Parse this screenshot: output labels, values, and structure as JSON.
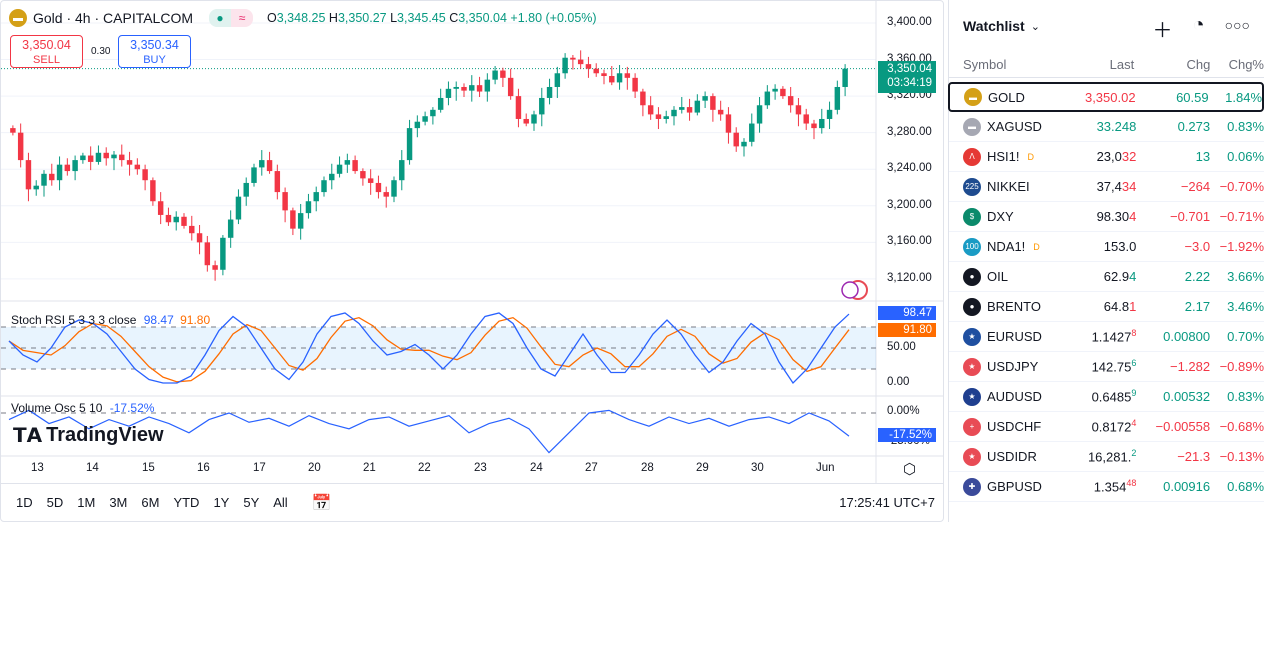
{
  "header": {
    "symbol": "Gold · 4h · CAPITALCOM",
    "open_label": "O",
    "open": "3,348.25",
    "high_label": "H",
    "high": "3,350.27",
    "low_label": "L",
    "low": "3,345.45",
    "close_label": "C",
    "close": "3,350.04",
    "change": "+1.80 (+0.05%)"
  },
  "trade": {
    "sell_price": "3,350.04",
    "sell_label": "SELL",
    "spread": "0.30",
    "buy_price": "3,350.34",
    "buy_label": "BUY"
  },
  "price_axis": {
    "labels": [
      "3,400.00",
      "3,360.00",
      "3,320.00",
      "3,280.00",
      "3,240.00",
      "3,200.00",
      "3,160.00",
      "3,120.00"
    ],
    "values": [
      3400,
      3360,
      3320,
      3280,
      3240,
      3200,
      3160,
      3120
    ],
    "current_price": "3,350.04",
    "countdown": "03:34:19"
  },
  "stoch": {
    "label": "Stoch RSI 5 3 3 3 close",
    "k_value": "98.47",
    "d_value": "91.80",
    "axis": [
      "50.00",
      "0.00"
    ],
    "k": [
      60,
      40,
      30,
      50,
      80,
      90,
      85,
      70,
      45,
      20,
      5,
      0,
      0,
      10,
      40,
      75,
      95,
      80,
      50,
      20,
      5,
      30,
      70,
      95,
      100,
      85,
      60,
      40,
      45,
      55,
      40,
      20,
      40,
      70,
      95,
      100,
      85,
      50,
      20,
      10,
      40,
      70,
      40,
      15,
      15,
      40,
      70,
      90,
      70,
      40,
      15,
      30,
      60,
      85,
      70,
      30,
      0,
      20,
      50,
      80,
      98.47
    ]
  },
  "volume_osc": {
    "label": "Volume Osc 5 10",
    "value": "-17.52%",
    "axis": [
      "0.00%",
      "-25.00%"
    ],
    "values": [
      -5,
      2,
      -8,
      -3,
      -12,
      -5,
      -10,
      -3,
      -8,
      -15,
      -5,
      0,
      -7,
      -4,
      -10,
      -2,
      -8,
      -12,
      -5,
      -3,
      -10,
      -6,
      -2,
      -15,
      -8,
      -4,
      -12,
      -30,
      -15,
      0,
      2,
      -5,
      -10,
      -3,
      -8,
      -4,
      -10,
      -5,
      -3,
      -8,
      0,
      -6,
      -17.52
    ]
  },
  "time_axis": [
    "13",
    "14",
    "15",
    "16",
    "17",
    "20",
    "21",
    "22",
    "23",
    "24",
    "27",
    "28",
    "29",
    "30",
    "Jun"
  ],
  "candles_close": [
    3280,
    3250,
    3218,
    3222,
    3235,
    3228,
    3245,
    3238,
    3250,
    3255,
    3248,
    3258,
    3252,
    3256,
    3250,
    3245,
    3240,
    3228,
    3205,
    3190,
    3182,
    3188,
    3178,
    3170,
    3160,
    3135,
    3130,
    3165,
    3185,
    3210,
    3225,
    3242,
    3250,
    3238,
    3215,
    3195,
    3175,
    3192,
    3205,
    3215,
    3228,
    3235,
    3245,
    3250,
    3238,
    3230,
    3225,
    3215,
    3210,
    3228,
    3250,
    3285,
    3292,
    3298,
    3305,
    3318,
    3328,
    3330,
    3326,
    3332,
    3325,
    3338,
    3348,
    3340,
    3320,
    3295,
    3290,
    3300,
    3318,
    3330,
    3345,
    3362,
    3360,
    3355,
    3350,
    3345,
    3342,
    3335,
    3345,
    3340,
    3325,
    3310,
    3300,
    3295,
    3298,
    3305,
    3308,
    3302,
    3315,
    3320,
    3305,
    3300,
    3280,
    3265,
    3270,
    3290,
    3310,
    3325,
    3328,
    3320,
    3310,
    3300,
    3290,
    3285,
    3295,
    3305,
    3330,
    3350.04
  ],
  "brand": "TradingView",
  "ranges": [
    "1D",
    "5D",
    "1M",
    "3M",
    "6M",
    "YTD",
    "1Y",
    "5Y",
    "All"
  ],
  "clock": "17:25:41 UTC+7",
  "watchlist": {
    "title": "Watchlist",
    "columns": [
      "Symbol",
      "Last",
      "Chg",
      "Chg%"
    ],
    "rows": [
      {
        "sym": "GOLD",
        "last": "3,350.02",
        "tail": "",
        "chg": "60.59",
        "pct": "1.84%",
        "dir": "up",
        "lastcolor": "dn",
        "icon": "gold-bar",
        "color": "#d4a017",
        "glyph": "▬"
      },
      {
        "sym": "XAGUSD",
        "last": "33.248",
        "tail": "",
        "chg": "0.273",
        "pct": "0.83%",
        "dir": "up",
        "lastcolor": "up",
        "icon": "silver-bar",
        "color": "#a6a8b3",
        "glyph": "▬"
      },
      {
        "sym": "HSI1!",
        "last": "23,0",
        "tail": "32",
        "chg": "13",
        "pct": "0.06%",
        "dir": "up",
        "tailcolor": "dn",
        "icon": "hsi",
        "color": "#e53935",
        "glyph": "Λ",
        "badge": "D"
      },
      {
        "sym": "NIKKEI",
        "last": "37,4",
        "tail": "34",
        "chg": "−264",
        "pct": "−0.70%",
        "dir": "dn",
        "tailcolor": "dn",
        "icon": "nikkei-225",
        "color": "#1e4b8f",
        "glyph": "225"
      },
      {
        "sym": "DXY",
        "last": "98.30",
        "tail": "4",
        "chg": "−0.701",
        "pct": "−0.71%",
        "dir": "dn",
        "tailcolor": "dn",
        "icon": "dollar",
        "color": "#0b8a6b",
        "glyph": "$"
      },
      {
        "sym": "NDA1!",
        "last": "153.0",
        "tail": "",
        "chg": "−3.0",
        "pct": "−1.92%",
        "dir": "dn",
        "icon": "nasdaq-100",
        "color": "#1a9bc4",
        "glyph": "100",
        "badge": "D"
      },
      {
        "sym": "OIL",
        "last": "62.9",
        "tail": "4",
        "chg": "2.22",
        "pct": "3.66%",
        "dir": "up",
        "tailcolor": "up",
        "icon": "oil-drop",
        "color": "#131722",
        "glyph": "●"
      },
      {
        "sym": "BRENTO",
        "last": "64.8",
        "tail": "1",
        "chg": "2.17",
        "pct": "3.46%",
        "dir": "up",
        "tailcolor": "dn",
        "icon": "oil-drop",
        "color": "#131722",
        "glyph": "●"
      },
      {
        "sym": "EURUSD",
        "last": "1.1427",
        "tail": "8",
        "chg": "0.00800",
        "pct": "0.70%",
        "dir": "up",
        "tailcolor": "dn",
        "sup": true,
        "icon": "eur-usd-flag",
        "color": "#1f4fa0",
        "glyph": "★"
      },
      {
        "sym": "USDJPY",
        "last": "142.75",
        "tail": "6",
        "chg": "−1.282",
        "pct": "−0.89%",
        "dir": "dn",
        "tailcolor": "up",
        "sup": true,
        "icon": "usd-jpy-flag",
        "color": "#e84b55",
        "glyph": "★"
      },
      {
        "sym": "AUDUSD",
        "last": "0.6485",
        "tail": "9",
        "chg": "0.00532",
        "pct": "0.83%",
        "dir": "up",
        "tailcolor": "up",
        "sup": true,
        "icon": "aud-usd-flag",
        "color": "#1f3f8f",
        "glyph": "★"
      },
      {
        "sym": "USDCHF",
        "last": "0.8172",
        "tail": "4",
        "chg": "−0.00558",
        "pct": "−0.68%",
        "dir": "dn",
        "tailcolor": "dn",
        "sup": true,
        "icon": "usd-chf-flag",
        "color": "#e84b55",
        "glyph": "+"
      },
      {
        "sym": "USDIDR",
        "last": "16,281.",
        "tail": "2",
        "chg": "−21.3",
        "pct": "−0.13%",
        "dir": "dn",
        "tailcolor": "up",
        "sup": true,
        "icon": "usd-idr-flag",
        "color": "#e84b55",
        "glyph": "★"
      },
      {
        "sym": "GBPUSD",
        "last": "1.354",
        "tail": "48",
        "chg": "0.00916",
        "pct": "0.68%",
        "dir": "up",
        "tailcolor": "dn",
        "sup": true,
        "icon": "gbp-usd-flag",
        "color": "#3a4a9a",
        "glyph": "✚"
      }
    ]
  }
}
